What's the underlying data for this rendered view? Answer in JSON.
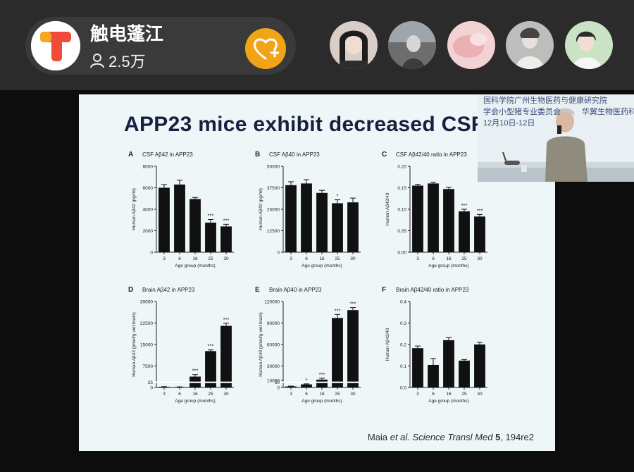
{
  "host": {
    "name": "触电蓬江",
    "viewers": "2.5万",
    "logo_icon": "t-logo-icon",
    "follow_icon": "heart-plus-icon"
  },
  "audience": [
    {
      "name": "viewer-avatar-1",
      "bg": "#d8c9c2"
    },
    {
      "name": "viewer-avatar-2",
      "bg": "#b5b5b5"
    },
    {
      "name": "viewer-avatar-3",
      "bg": "#f0c7c9"
    },
    {
      "name": "viewer-avatar-4",
      "bg": "#9b9b9b"
    },
    {
      "name": "viewer-avatar-5",
      "bg": "#b9d8b5"
    }
  ],
  "slide": {
    "title": "APP23 mice exhibit decreased CSF",
    "citation_prefix": "Maia ",
    "citation_italic1": "et al.",
    "citation_mid": " ",
    "citation_italic2": "Science Transl Med",
    "citation_bold": " 5",
    "citation_suffix": ", 194re2"
  },
  "pip": {
    "line1": "国科学院广州生物医药与健康研究院",
    "line2": "学会小型猪专业委员会",
    "line3": "华翼生物医药科技有",
    "line4": "12月10日-12日"
  },
  "colors": {
    "topbar": "#2b2b2b",
    "accent": "#f2a417",
    "slide_bg": "#eef6f7",
    "title": "#17213f",
    "bar": "#111111"
  },
  "chart_data": [
    {
      "panel": "A",
      "type": "bar",
      "title": "CSF Aβ42 in APP23",
      "xlabel": "Age group (months)",
      "ylabel": "Human Aβ42 (pg/ml)",
      "categories": [
        "3",
        "6",
        "16",
        "25",
        "30"
      ],
      "values": [
        6000,
        6300,
        4950,
        2750,
        2400
      ],
      "errors": [
        300,
        400,
        150,
        300,
        200
      ],
      "sig": [
        "",
        "",
        "",
        "***",
        "***"
      ],
      "ylim": [
        0,
        8000
      ],
      "yticks": [
        "0",
        "2000",
        "4000",
        "6000",
        "8000"
      ],
      "ytick_values": [
        0,
        2000,
        4000,
        6000,
        8000
      ]
    },
    {
      "panel": "B",
      "type": "bar",
      "title": "CSF Aβ40 in APP23",
      "xlabel": "Age group (months)",
      "ylabel": "Human Aβ40 (pg/ml)",
      "categories": [
        "3",
        "6",
        "16",
        "25",
        "30"
      ],
      "values": [
        39000,
        40000,
        34500,
        28500,
        29000
      ],
      "errors": [
        2000,
        2200,
        1500,
        2000,
        2500
      ],
      "sig": [
        "",
        "",
        "",
        "*",
        ""
      ],
      "ylim": [
        0,
        50000
      ],
      "yticks": [
        "0",
        "12500",
        "25000",
        "37500",
        "50000"
      ],
      "ytick_values": [
        0,
        12500,
        25000,
        37500,
        50000
      ]
    },
    {
      "panel": "C",
      "type": "bar",
      "title": "CSF Aβ42/40 ratio in APP23",
      "xlabel": "Age group (months)",
      "ylabel": "Human Aβ42/40",
      "categories": [
        "3",
        "6",
        "16",
        "25",
        "30"
      ],
      "values": [
        0.155,
        0.16,
        0.147,
        0.095,
        0.083
      ],
      "errors": [
        0.003,
        0.003,
        0.004,
        0.005,
        0.005
      ],
      "sig": [
        "",
        "",
        "",
        "***",
        "***"
      ],
      "ylim": [
        0,
        0.2
      ],
      "yticks": [
        "0.00",
        "0.05",
        "0.10",
        "0.15",
        "0.20"
      ],
      "ytick_values": [
        0,
        0.05,
        0.1,
        0.15,
        0.2
      ]
    },
    {
      "panel": "D",
      "type": "bar",
      "title": "Brain Aβ42 in APP23",
      "xlabel": "Age group (months)",
      "ylabel": "Human Aβ42 (pmol/g wet brain)",
      "categories": [
        "3",
        "6",
        "16",
        "25",
        "30"
      ],
      "values": [
        3,
        2,
        3800,
        12700,
        21500
      ],
      "errors": [
        1,
        1,
        700,
        400,
        900
      ],
      "sig": [
        "",
        "",
        "***",
        "***",
        "***"
      ],
      "ylim": [
        0,
        30000
      ],
      "axis_break": true,
      "yticks": [
        "0",
        "25",
        "7500",
        "15000",
        "22500",
        "30000"
      ],
      "ytick_pos": [
        0,
        0.06,
        0.25,
        0.5,
        0.75,
        1.0
      ],
      "break_pos": 0.06
    },
    {
      "panel": "E",
      "type": "bar",
      "title": "Brain Aβ40 in APP23",
      "xlabel": "Age group (months)",
      "ylabel": "Human Aβ40 (pmol/g wet brain)",
      "categories": [
        "3",
        "6",
        "16",
        "25",
        "30"
      ],
      "values": [
        10,
        30,
        11000,
        97000,
        108000
      ],
      "errors": [
        3,
        5,
        2000,
        5000,
        3500
      ],
      "sig": [
        "",
        "*",
        "***",
        "***",
        "***"
      ],
      "ylim": [
        0,
        120000
      ],
      "axis_break": true,
      "yticks": [
        "0",
        "50",
        "10000",
        "30000",
        "60000",
        "90000",
        "120000"
      ],
      "ytick_pos": [
        0,
        0.06,
        0.083,
        0.25,
        0.5,
        0.75,
        1.0
      ],
      "break_pos": 0.06
    },
    {
      "panel": "F",
      "type": "bar",
      "title": "Brain Aβ42/40 ratio in APP23",
      "xlabel": "Age group (months)",
      "ylabel": "Human Aβ42/40",
      "categories": [
        "3",
        "6",
        "16",
        "25",
        "30"
      ],
      "values": [
        0.183,
        0.105,
        0.22,
        0.125,
        0.2
      ],
      "errors": [
        0.01,
        0.03,
        0.012,
        0.005,
        0.01
      ],
      "sig": [
        "",
        "",
        "",
        "",
        ""
      ],
      "ylim": [
        0,
        0.4
      ],
      "yticks": [
        "0.0",
        "0.1",
        "0.2",
        "0.3",
        "0.4"
      ],
      "ytick_values": [
        0,
        0.1,
        0.2,
        0.3,
        0.4
      ]
    }
  ]
}
